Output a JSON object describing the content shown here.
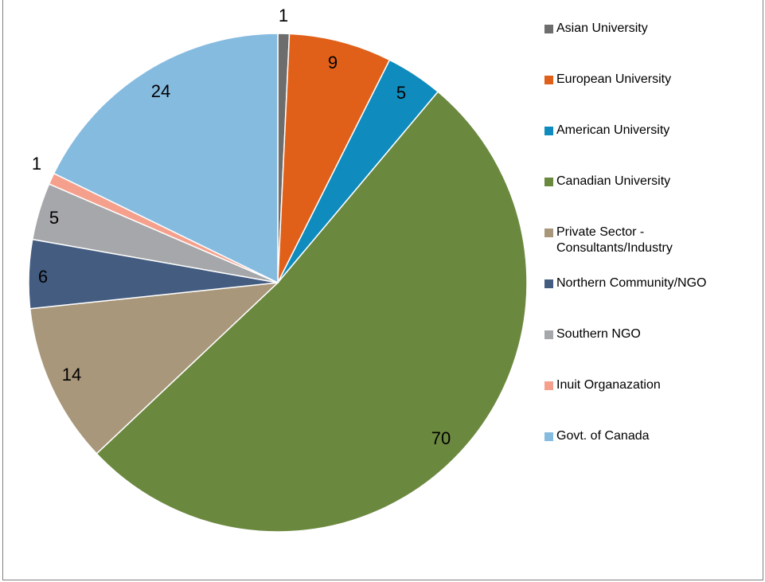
{
  "chart_data": {
    "type": "pie",
    "title": "",
    "legend_position": "right",
    "slices": [
      {
        "name": "Asian University",
        "value": 1,
        "color": "#6d6d6d"
      },
      {
        "name": "European University",
        "value": 9,
        "color": "#e0601a"
      },
      {
        "name": "American University",
        "value": 5,
        "color": "#0f8bbd"
      },
      {
        "name": "Canadian University",
        "value": 70,
        "color": "#6b883f"
      },
      {
        "name": "Private Sector -\nConsultants/Industry",
        "value": 14,
        "color": "#a8977a"
      },
      {
        "name": "Northern Community/NGO",
        "value": 6,
        "color": "#435c80"
      },
      {
        "name": "Southern NGO",
        "value": 5,
        "color": "#a6a7aa"
      },
      {
        "name": "Inuit Organazation",
        "value": 1,
        "color": "#f5a08c"
      },
      {
        "name": "Govt. of Canada",
        "value": 24,
        "color": "#86bbe0"
      }
    ]
  }
}
